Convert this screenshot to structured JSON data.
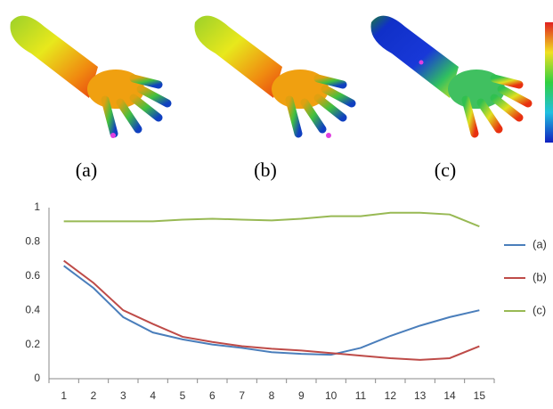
{
  "panels": [
    {
      "label": "(a)"
    },
    {
      "label": "(b)"
    },
    {
      "label": "(c)"
    }
  ],
  "chart_data": {
    "type": "line",
    "categories": [
      "1",
      "2",
      "3",
      "4",
      "5",
      "6",
      "7",
      "8",
      "9",
      "10",
      "11",
      "12",
      "13",
      "14",
      "15"
    ],
    "series": [
      {
        "name": "(a)",
        "color": "#4a7ebb",
        "values": [
          0.66,
          0.53,
          0.36,
          0.27,
          0.23,
          0.2,
          0.18,
          0.155,
          0.145,
          0.14,
          0.18,
          0.25,
          0.31,
          0.36,
          0.4
        ]
      },
      {
        "name": "(b)",
        "color": "#be4b48",
        "values": [
          0.69,
          0.56,
          0.4,
          0.32,
          0.245,
          0.215,
          0.19,
          0.175,
          0.165,
          0.15,
          0.135,
          0.12,
          0.11,
          0.12,
          0.19
        ]
      },
      {
        "name": "(c)",
        "color": "#98b954",
        "values": [
          0.92,
          0.92,
          0.92,
          0.92,
          0.93,
          0.935,
          0.93,
          0.925,
          0.935,
          0.95,
          0.95,
          0.97,
          0.97,
          0.96,
          0.89
        ]
      }
    ],
    "ylim": [
      0,
      1
    ],
    "yticks": [
      0,
      0.2,
      0.4,
      0.6,
      0.8,
      1
    ],
    "legend": "right"
  }
}
